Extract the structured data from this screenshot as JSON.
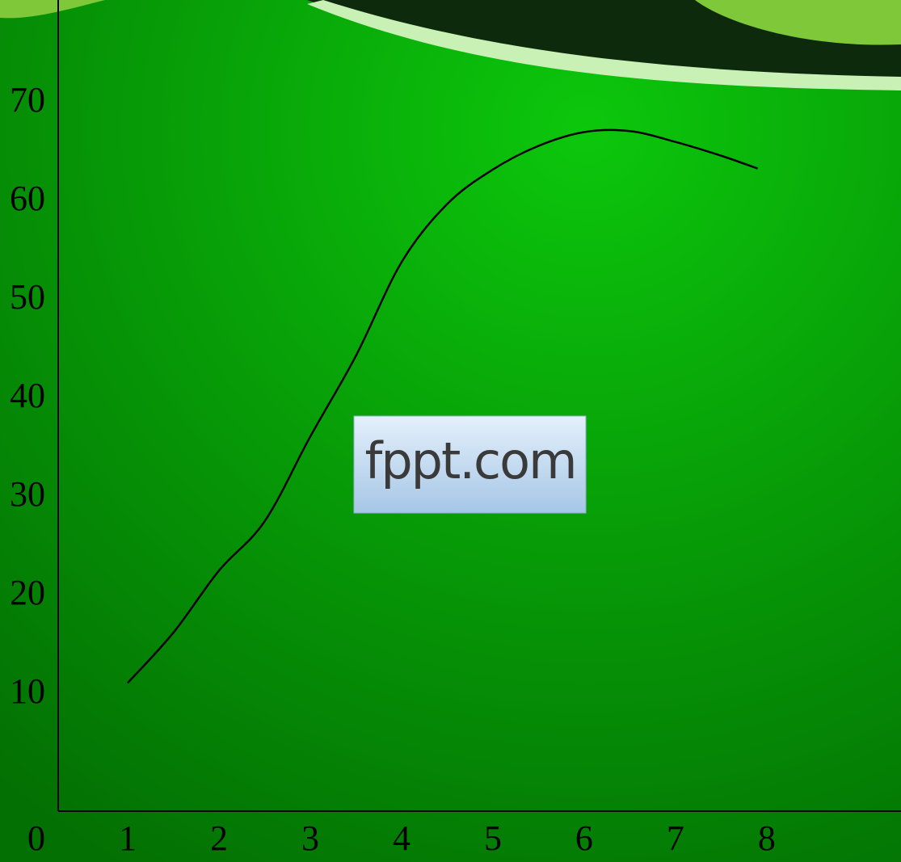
{
  "chart_data": {
    "type": "line",
    "x": [
      1,
      1.5,
      2,
      2.5,
      3,
      3.5,
      4,
      4.5,
      5,
      5.5,
      6,
      6.5,
      7,
      7.5,
      7.9
    ],
    "series": [
      {
        "color": "#000000",
        "values": [
          11.2,
          16.3,
          22.6,
          27.6,
          36.2,
          44.4,
          53.9,
          59.8,
          63.3,
          65.7,
          67.1,
          67.2,
          66.1,
          64.7,
          63.4
        ]
      }
    ],
    "xlim": [
      0,
      9.47
    ],
    "ylim": [
      -1.8,
      80.5
    ],
    "xticks": [
      0,
      1,
      2,
      3,
      4,
      5,
      6,
      7,
      8
    ],
    "yticks": [
      10,
      20,
      30,
      40,
      50,
      60,
      70
    ],
    "watermark": "fppt.com"
  }
}
